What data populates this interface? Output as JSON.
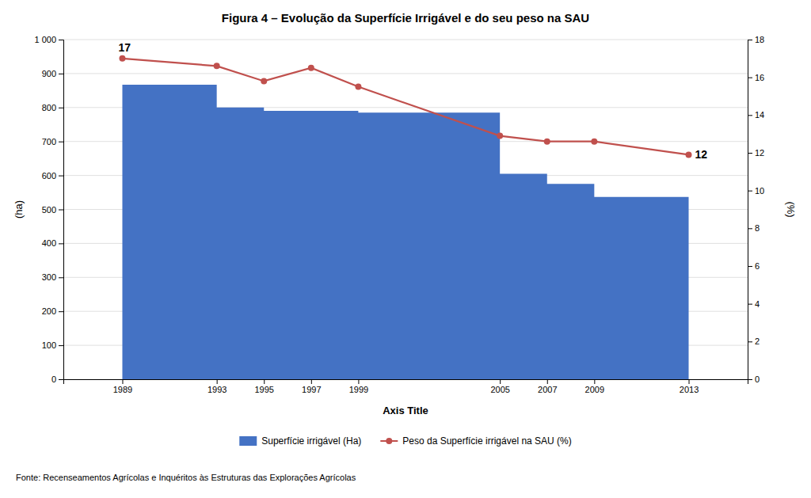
{
  "chart_data": {
    "type": "area",
    "title": "Figura 4 – Evolução da Superfície Irrigável e do seu peso na SAU",
    "xlabel": "Axis Title",
    "ylabel": "(ha)",
    "y2label": "(%)",
    "source": "Fonte: Recenseamentos Agrícolas e Inquéritos às Estruturas das Explorações Agrícolas",
    "x": [
      1989,
      1993,
      1995,
      1997,
      1999,
      2005,
      2007,
      2009,
      2013
    ],
    "series": [
      {
        "name": "Superfície irrigável (Ha)",
        "type": "area",
        "line_style": "step",
        "color": "#4472C4",
        "values": [
          867,
          800,
          790,
          790,
          785,
          605,
          575,
          537,
          549
        ]
      },
      {
        "name": "Peso da Superfície irrigável na SAU (%)",
        "type": "line",
        "axis": "y2",
        "marker": "circle",
        "color": "#C0504D",
        "values": [
          17.0,
          16.6,
          15.8,
          16.5,
          15.5,
          12.9,
          12.6,
          12.6,
          11.9
        ]
      }
    ],
    "xlim": [
      1986.5,
      2015.5
    ],
    "xticks": [
      1989,
      1993,
      1995,
      1997,
      1999,
      2005,
      2007,
      2009,
      2013
    ],
    "ylim": [
      0,
      1000
    ],
    "yticks": [
      0,
      100,
      200,
      300,
      400,
      500,
      600,
      700,
      800,
      900,
      {
        "value": 1000,
        "label": "1 000"
      }
    ],
    "y2lim": [
      0,
      18
    ],
    "y2ticks": [
      0,
      2,
      4,
      6,
      8,
      10,
      12,
      14,
      16,
      18
    ],
    "annotations": [
      {
        "text": "17",
        "x": 1989,
        "y": 17.0,
        "axis": "y2"
      },
      {
        "text": "12",
        "x": 2013,
        "y": 11.9,
        "axis": "y2"
      }
    ],
    "grid": true,
    "legend": "bottom"
  }
}
